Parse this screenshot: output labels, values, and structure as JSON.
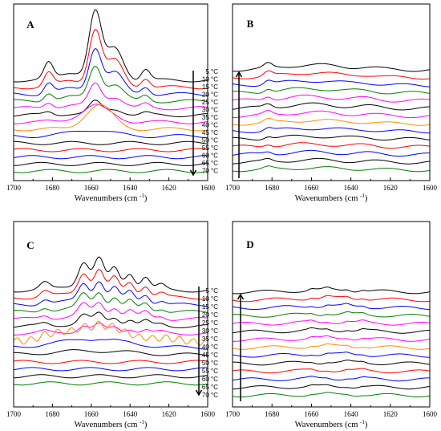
{
  "xlabel": "Wavenumbers (cm",
  "xlabel_sup": "-1",
  "xlabel_close": ")",
  "x_ticks": [
    "1700",
    "1680",
    "1660",
    "1640",
    "1620",
    "1600"
  ],
  "temperatures": [
    "5 °C",
    "10 °C",
    "15 °C",
    "20 °C",
    "25 °C",
    "30 °C",
    "35 °C",
    "40 °C",
    "45 °C",
    "50 °C",
    "55 °C",
    "60 °C",
    "65 °C",
    "70 °C"
  ],
  "colors": {
    "5 °C": "#000000",
    "10 °C": "#ff0000",
    "15 °C": "#0000ff",
    "20 °C": "#008000",
    "25 °C": "#ff00ff",
    "30 °C": "#000000",
    "35 °C": "#ff00ff",
    "40 °C": "#ff8c00",
    "45 °C": "#0000ff",
    "50 °C": "#000000",
    "55 °C": "#ff0000",
    "60 °C": "#0000ff",
    "65 °C": "#000000",
    "70 °C": "#008000"
  },
  "chart_data": [
    {
      "panel": "A",
      "type": "line",
      "xlim": [
        1700,
        1600
      ],
      "x_reversed": true,
      "xlabel": "Wavenumbers (cm-1)",
      "yaxis": "none",
      "arrow": "down",
      "temperature_order": "top-to-bottom 5 °C to 70 °C",
      "features": {
        "peaks_cm-1": [
          1682,
          1658,
          1647,
          1632
        ],
        "peak_loss_by_temp": "40 °C"
      }
    },
    {
      "panel": "B",
      "type": "line",
      "xlim": [
        1700,
        1600
      ],
      "x_reversed": true,
      "xlabel": "Wavenumbers (cm-1)",
      "yaxis": "none",
      "arrow": "up",
      "temperature_order": "bottom-to-top 70 °C to 5 °C",
      "features": {
        "peaks_cm-1": [
          1682,
          1660
        ],
        "shape": "weak broad bands"
      }
    },
    {
      "panel": "C",
      "type": "line",
      "xlim": [
        1700,
        1600
      ],
      "x_reversed": true,
      "xlabel": "Wavenumbers (cm-1)",
      "yaxis": "none",
      "arrow": "down",
      "temperature_order": "top-to-bottom 5 °C to 70 °C",
      "features": {
        "peaks_cm-1": [
          1684,
          1664,
          1656,
          1648,
          1640,
          1632,
          1624
        ],
        "peak_loss_by_temp": "45 °C"
      }
    },
    {
      "panel": "D",
      "type": "line",
      "xlim": [
        1700,
        1600
      ],
      "x_reversed": true,
      "xlabel": "Wavenumbers (cm-1)",
      "yaxis": "none",
      "arrow": "up",
      "temperature_order": "bottom-to-top 70 °C to 5 °C",
      "features": {
        "peaks_cm-1": [
          1660,
          1652,
          1642,
          1634
        ],
        "shape": "weak fine structure"
      }
    }
  ]
}
